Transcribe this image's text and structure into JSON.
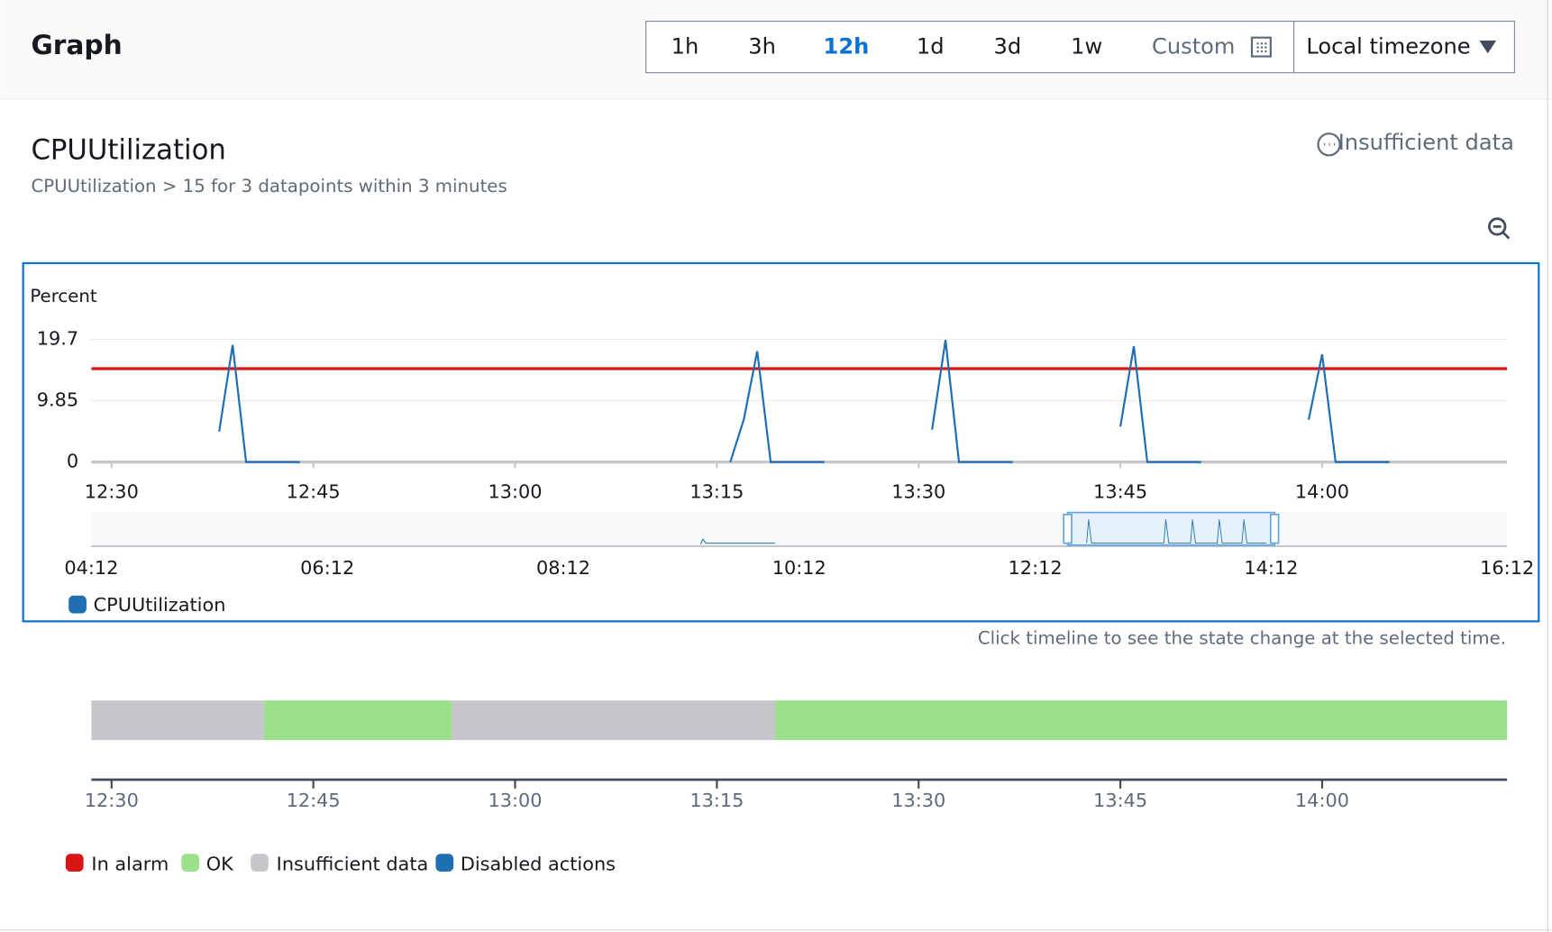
{
  "header": {
    "title": "Graph",
    "time_ranges": [
      "1h",
      "3h",
      "12h",
      "1d",
      "3d",
      "1w"
    ],
    "selected_range": 2,
    "custom": "Custom",
    "timezone": "Local timezone"
  },
  "alarm": {
    "name": "CPUUtilization",
    "condition": "CPUUtilization > 15 for 3 datapoints within 3 minutes",
    "state": "Insufficient data"
  },
  "chart_data": [
    {
      "type": "line",
      "y_label": "Percent",
      "xlim": [
        "12:28:30",
        "14:13:45"
      ],
      "xticks": [
        "12:30",
        "12:45",
        "13:00",
        "13:15",
        "13:30",
        "13:45",
        "14:00"
      ],
      "ylim": [
        0,
        19.7
      ],
      "yticks": [
        0,
        9.85,
        19.7
      ],
      "grid": true,
      "threshold": {
        "value": 15,
        "color": "#d91515"
      },
      "series": [
        {
          "name": "CPUUtilization",
          "color": "#1f6fb2",
          "x": [
            "12:38",
            "12:39",
            "12:40",
            "12:44",
            "12:50",
            "13:16",
            "13:17",
            "13:18",
            "13:19",
            "13:23",
            "13:27",
            "13:31",
            "13:32",
            "13:33",
            "13:37",
            "13:41",
            "13:45",
            "13:46",
            "13:47",
            "13:51",
            "13:55",
            "13:59",
            "14:00",
            "14:01",
            "14:05"
          ],
          "values": [
            4.9,
            18.8,
            0,
            0,
            null,
            0,
            6.8,
            17.8,
            0,
            0,
            null,
            5.2,
            19.6,
            0,
            0,
            null,
            5.7,
            18.6,
            0,
            0,
            null,
            6.8,
            17.3,
            0,
            0
          ]
        }
      ],
      "navigator": {
        "xlim": [
          "04:12",
          "16:12"
        ],
        "xticks": [
          "04:12",
          "06:12",
          "08:12",
          "10:12",
          "12:12",
          "14:12",
          "16:12"
        ]
      }
    },
    {
      "type": "timeline",
      "note": "Click timeline to see the state change at the selected time.",
      "xlim": [
        "12:28:30",
        "14:13:45"
      ],
      "xticks": [
        "12:30",
        "12:45",
        "13:00",
        "13:15",
        "13:30",
        "13:45",
        "14:00"
      ],
      "segments": [
        {
          "state": 2,
          "start": "12:28:30",
          "end": "12:41:20"
        },
        {
          "state": 1,
          "start": "12:41:20",
          "end": "12:55:18"
        },
        {
          "state": 2,
          "start": "12:55:18",
          "end": "13:19:20"
        },
        {
          "state": 1,
          "start": "13:19:20",
          "end": "14:13:45"
        }
      ],
      "states": [
        {
          "name": "In alarm",
          "color": "#d91515"
        },
        {
          "name": "OK",
          "color": "#9be08a"
        },
        {
          "name": "Insufficient data",
          "color": "#c6c6cd"
        },
        {
          "name": "Disabled actions",
          "color": "#1f6fb2"
        }
      ]
    }
  ]
}
